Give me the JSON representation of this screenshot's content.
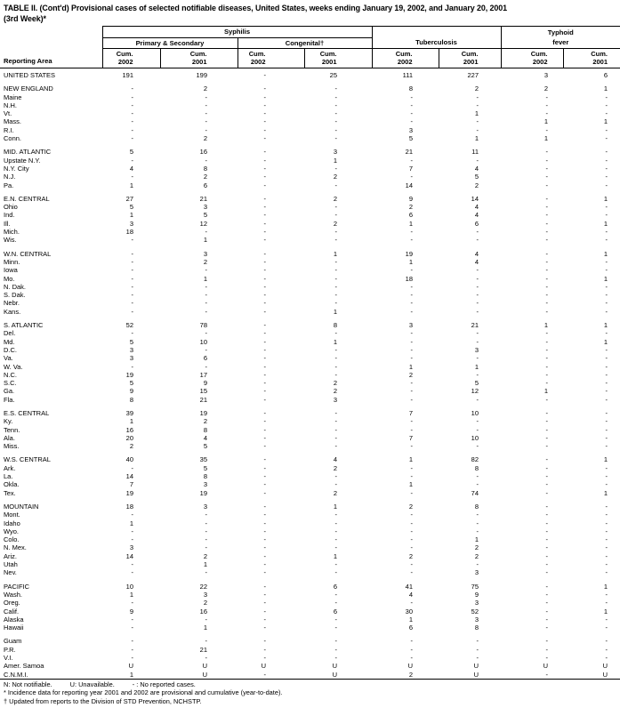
{
  "title": {
    "line1": "TABLE II. (Cont'd) Provisional cases of selected notifiable diseases, United States, weeks ending January 19, 2002, and January 20, 2001",
    "line2": "(3rd Week)*"
  },
  "table": {
    "reporting_area_label": "Reporting Area",
    "group_syphilis": "Syphilis",
    "group_primary_secondary": "Primary & Secondary",
    "group_congenital": "Congenital†",
    "group_tuberculosis": "Tuberculosis",
    "group_typhoid_line1": "Typhoid",
    "group_typhoid_line2": "fever",
    "col_headers": [
      {
        "line1": "Cum.",
        "line2": "2002"
      },
      {
        "line1": "Cum.",
        "line2": "2001"
      },
      {
        "line1": "Cum.",
        "line2": "2002"
      },
      {
        "line1": "Cum.",
        "line2": "2001"
      },
      {
        "line1": "Cum.",
        "line2": "2002"
      },
      {
        "line1": "Cum.",
        "line2": "2001"
      },
      {
        "line1": "Cum.",
        "line2": "2002"
      },
      {
        "line1": "Cum.",
        "line2": "2001"
      }
    ]
  },
  "rows": [
    {
      "area": "UNITED STATES",
      "values": [
        "191",
        "199",
        "-",
        "25",
        "111",
        "227",
        "3",
        "6"
      ]
    },
    {
      "area": "NEW ENGLAND",
      "values": [
        "-",
        "2",
        "-",
        "-",
        "8",
        "2",
        "2",
        "1"
      ],
      "gap": true
    },
    {
      "area": "Maine",
      "values": [
        "-",
        "-",
        "-",
        "-",
        "-",
        "-",
        "-",
        "-"
      ]
    },
    {
      "area": "N.H.",
      "values": [
        "-",
        "-",
        "-",
        "-",
        "-",
        "-",
        "-",
        "-"
      ]
    },
    {
      "area": "Vt.",
      "values": [
        "-",
        "-",
        "-",
        "-",
        "-",
        "1",
        "-",
        "-"
      ]
    },
    {
      "area": "Mass.",
      "values": [
        "-",
        "-",
        "-",
        "-",
        "-",
        "-",
        "1",
        "1"
      ]
    },
    {
      "area": "R.I.",
      "values": [
        "-",
        "-",
        "-",
        "-",
        "3",
        "-",
        "-",
        "-"
      ]
    },
    {
      "area": "Conn.",
      "values": [
        "-",
        "2",
        "-",
        "-",
        "5",
        "1",
        "1",
        "-"
      ]
    },
    {
      "area": "MID. ATLANTIC",
      "values": [
        "5",
        "16",
        "-",
        "3",
        "21",
        "11",
        "-",
        "-"
      ],
      "gap": true
    },
    {
      "area": "Upstate N.Y.",
      "values": [
        "-",
        "-",
        "-",
        "1",
        "-",
        "-",
        "-",
        "-"
      ]
    },
    {
      "area": "N.Y. City",
      "values": [
        "4",
        "8",
        "-",
        "-",
        "7",
        "4",
        "-",
        "-"
      ]
    },
    {
      "area": "N.J.",
      "values": [
        "-",
        "2",
        "-",
        "2",
        "-",
        "5",
        "-",
        "-"
      ]
    },
    {
      "area": "Pa.",
      "values": [
        "1",
        "6",
        "-",
        "-",
        "14",
        "2",
        "-",
        "-"
      ]
    },
    {
      "area": "E.N. CENTRAL",
      "values": [
        "27",
        "21",
        "-",
        "2",
        "9",
        "14",
        "-",
        "1"
      ],
      "gap": true
    },
    {
      "area": "Ohio",
      "values": [
        "5",
        "3",
        "-",
        "-",
        "2",
        "4",
        "-",
        "-"
      ]
    },
    {
      "area": "Ind.",
      "values": [
        "1",
        "5",
        "-",
        "-",
        "6",
        "4",
        "-",
        "-"
      ]
    },
    {
      "area": "Ill.",
      "values": [
        "3",
        "12",
        "-",
        "2",
        "1",
        "6",
        "-",
        "1"
      ]
    },
    {
      "area": "Mich.",
      "values": [
        "18",
        "-",
        "-",
        "-",
        "-",
        "-",
        "-",
        "-"
      ]
    },
    {
      "area": "Wis.",
      "values": [
        "-",
        "1",
        "-",
        "-",
        "-",
        "-",
        "-",
        "-"
      ]
    },
    {
      "area": "W.N. CENTRAL",
      "values": [
        "-",
        "3",
        "-",
        "1",
        "19",
        "4",
        "-",
        "1"
      ],
      "gap": true
    },
    {
      "area": "Minn.",
      "values": [
        "-",
        "2",
        "-",
        "-",
        "1",
        "4",
        "-",
        "-"
      ]
    },
    {
      "area": "Iowa",
      "values": [
        "-",
        "-",
        "-",
        "-",
        "-",
        "-",
        "-",
        "-"
      ]
    },
    {
      "area": "Mo.",
      "values": [
        "-",
        "1",
        "-",
        "-",
        "18",
        "-",
        "-",
        "1"
      ]
    },
    {
      "area": "N. Dak.",
      "values": [
        "-",
        "-",
        "-",
        "-",
        "-",
        "-",
        "-",
        "-"
      ]
    },
    {
      "area": "S. Dak.",
      "values": [
        "-",
        "-",
        "-",
        "-",
        "-",
        "-",
        "-",
        "-"
      ]
    },
    {
      "area": "Nebr.",
      "values": [
        "-",
        "-",
        "-",
        "-",
        "-",
        "-",
        "-",
        "-"
      ]
    },
    {
      "area": "Kans.",
      "values": [
        "-",
        "-",
        "-",
        "1",
        "-",
        "-",
        "-",
        "-"
      ]
    },
    {
      "area": "S. ATLANTIC",
      "values": [
        "52",
        "78",
        "-",
        "8",
        "3",
        "21",
        "1",
        "1"
      ],
      "gap": true
    },
    {
      "area": "Del.",
      "values": [
        "-",
        "-",
        "-",
        "-",
        "-",
        "-",
        "-",
        "-"
      ]
    },
    {
      "area": "Md.",
      "values": [
        "5",
        "10",
        "-",
        "1",
        "-",
        "-",
        "-",
        "1"
      ]
    },
    {
      "area": "D.C.",
      "values": [
        "3",
        "-",
        "-",
        "-",
        "-",
        "3",
        "-",
        "-"
      ]
    },
    {
      "area": "Va.",
      "values": [
        "3",
        "6",
        "-",
        "-",
        "-",
        "-",
        "-",
        "-"
      ]
    },
    {
      "area": "W. Va.",
      "values": [
        "-",
        "-",
        "-",
        "-",
        "1",
        "1",
        "-",
        "-"
      ]
    },
    {
      "area": "N.C.",
      "values": [
        "19",
        "17",
        "-",
        "-",
        "2",
        "-",
        "-",
        "-"
      ]
    },
    {
      "area": "S.C.",
      "values": [
        "5",
        "9",
        "-",
        "2",
        "-",
        "5",
        "-",
        "-"
      ]
    },
    {
      "area": "Ga.",
      "values": [
        "9",
        "15",
        "-",
        "2",
        "-",
        "12",
        "1",
        "-"
      ]
    },
    {
      "area": "Fla.",
      "values": [
        "8",
        "21",
        "-",
        "3",
        "-",
        "-",
        "-",
        "-"
      ]
    },
    {
      "area": "E.S. CENTRAL",
      "values": [
        "39",
        "19",
        "-",
        "-",
        "7",
        "10",
        "-",
        "-"
      ],
      "gap": true
    },
    {
      "area": "Ky.",
      "values": [
        "1",
        "2",
        "-",
        "-",
        "-",
        "-",
        "-",
        "-"
      ]
    },
    {
      "area": "Tenn.",
      "values": [
        "16",
        "8",
        "-",
        "-",
        "-",
        "-",
        "-",
        "-"
      ]
    },
    {
      "area": "Ala.",
      "values": [
        "20",
        "4",
        "-",
        "-",
        "7",
        "10",
        "-",
        "-"
      ]
    },
    {
      "area": "Miss.",
      "values": [
        "2",
        "5",
        "-",
        "-",
        "-",
        "-",
        "-",
        "-"
      ]
    },
    {
      "area": "W.S. CENTRAL",
      "values": [
        "40",
        "35",
        "-",
        "4",
        "1",
        "82",
        "-",
        "1"
      ],
      "gap": true
    },
    {
      "area": "Ark.",
      "values": [
        "-",
        "5",
        "-",
        "2",
        "-",
        "8",
        "-",
        "-"
      ]
    },
    {
      "area": "La.",
      "values": [
        "14",
        "8",
        "-",
        "-",
        "-",
        "-",
        "-",
        "-"
      ]
    },
    {
      "area": "Okla.",
      "values": [
        "7",
        "3",
        "-",
        "-",
        "1",
        "-",
        "-",
        "-"
      ]
    },
    {
      "area": "Tex.",
      "values": [
        "19",
        "19",
        "-",
        "2",
        "-",
        "74",
        "-",
        "1"
      ]
    },
    {
      "area": "MOUNTAIN",
      "values": [
        "18",
        "3",
        "-",
        "1",
        "2",
        "8",
        "-",
        "-"
      ],
      "gap": true
    },
    {
      "area": "Mont.",
      "values": [
        "-",
        "-",
        "-",
        "-",
        "-",
        "-",
        "-",
        "-"
      ]
    },
    {
      "area": "Idaho",
      "values": [
        "1",
        "-",
        "-",
        "-",
        "-",
        "-",
        "-",
        "-"
      ]
    },
    {
      "area": "Wyo.",
      "values": [
        "-",
        "-",
        "-",
        "-",
        "-",
        "-",
        "-",
        "-"
      ]
    },
    {
      "area": "Colo.",
      "values": [
        "-",
        "-",
        "-",
        "-",
        "-",
        "1",
        "-",
        "-"
      ]
    },
    {
      "area": "N. Mex.",
      "values": [
        "3",
        "-",
        "-",
        "-",
        "-",
        "2",
        "-",
        "-"
      ]
    },
    {
      "area": "Ariz.",
      "values": [
        "14",
        "2",
        "-",
        "1",
        "2",
        "2",
        "-",
        "-"
      ]
    },
    {
      "area": "Utah",
      "values": [
        "-",
        "1",
        "-",
        "-",
        "-",
        "-",
        "-",
        "-"
      ]
    },
    {
      "area": "Nev.",
      "values": [
        "-",
        "-",
        "-",
        "-",
        "-",
        "3",
        "-",
        "-"
      ]
    },
    {
      "area": "PACIFIC",
      "values": [
        "10",
        "22",
        "-",
        "6",
        "41",
        "75",
        "-",
        "1"
      ],
      "gap": true
    },
    {
      "area": "Wash.",
      "values": [
        "1",
        "3",
        "-",
        "-",
        "4",
        "9",
        "-",
        "-"
      ]
    },
    {
      "area": "Oreg.",
      "values": [
        "-",
        "2",
        "-",
        "-",
        "-",
        "3",
        "-",
        "-"
      ]
    },
    {
      "area": "Calif.",
      "values": [
        "9",
        "16",
        "-",
        "6",
        "30",
        "52",
        "-",
        "1"
      ]
    },
    {
      "area": "Alaska",
      "values": [
        "-",
        "-",
        "-",
        "-",
        "1",
        "3",
        "-",
        "-"
      ]
    },
    {
      "area": "Hawaii",
      "values": [
        "-",
        "1",
        "-",
        "-",
        "6",
        "8",
        "-",
        "-"
      ]
    },
    {
      "area": "Guam",
      "values": [
        "-",
        "-",
        "-",
        "-",
        "-",
        "-",
        "-",
        "-"
      ],
      "gap": true
    },
    {
      "area": "P.R.",
      "values": [
        "-",
        "21",
        "-",
        "-",
        "-",
        "-",
        "-",
        "-"
      ]
    },
    {
      "area": "V.I.",
      "values": [
        "-",
        "-",
        "-",
        "-",
        "-",
        "-",
        "-",
        "-"
      ]
    },
    {
      "area": "Amer. Samoa",
      "values": [
        "U",
        "U",
        "U",
        "U",
        "U",
        "U",
        "U",
        "U"
      ]
    },
    {
      "area": "C.N.M.I.",
      "values": [
        "1",
        "U",
        "-",
        "U",
        "2",
        "U",
        "-",
        "U"
      ]
    }
  ],
  "footnotes": {
    "legend": [
      "N: Not notifiable.",
      "U: Unavailable.",
      "- : No reported cases."
    ],
    "line_asterisk": "* Incidence data for reporting year 2001 and 2002 are provisional and cumulative (year-to-date).",
    "line_dagger": "† Updated from reports to the Division of STD Prevention, NCHSTP."
  }
}
